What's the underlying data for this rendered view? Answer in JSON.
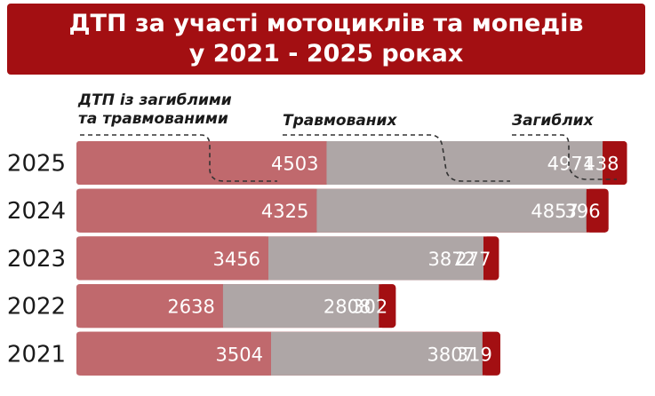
{
  "title": {
    "line1": "ДТП за участі мотоциклів та мопедів",
    "line2": "у 2021 - 2025 роках"
  },
  "colors": {
    "title_bg": "#a30f12",
    "accidents": "#c0696d",
    "injured": "#aea6a6",
    "killed": "#a30f12"
  },
  "chart_data": {
    "type": "bar",
    "orientation": "horizontal",
    "stacked": true,
    "categories": [
      "2025",
      "2024",
      "2023",
      "2022",
      "2021"
    ],
    "series": [
      {
        "name": "ДТП із загиблими та травмованими",
        "values": [
          4503,
          4325,
          3456,
          2638,
          3504
        ]
      },
      {
        "name": "Травмованих",
        "values": [
          4971,
          4857,
          3872,
          2808,
          3807
        ]
      },
      {
        "name": "Загиблих",
        "values": [
          438,
          396,
          277,
          302,
          319
        ]
      }
    ],
    "legend": {
      "accidents_line1": "ДТП із загиблими",
      "accidents_line2": "та травмованими",
      "injured": "Травмованих",
      "killed": "Загиблих"
    },
    "grid": false
  }
}
